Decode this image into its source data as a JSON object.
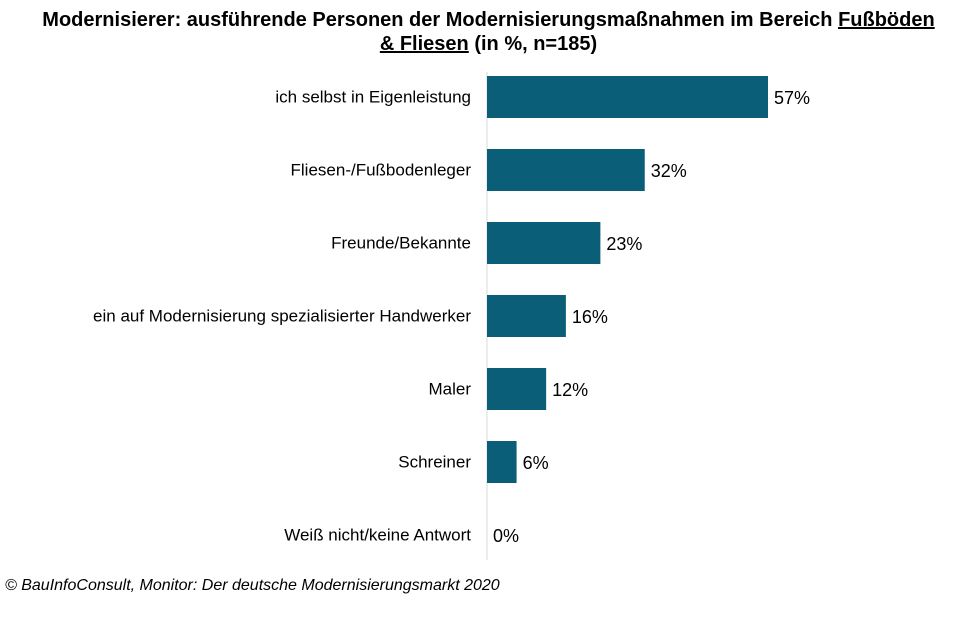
{
  "title": {
    "part1": "Modernisierer: ausführende Personen der Modernisierungsmaßnahmen im Bereich ",
    "underlined1": "Fußböden",
    "underlined2": "& Fliesen",
    "part2": " (in %, n=185)"
  },
  "chart_data": {
    "type": "bar",
    "orientation": "horizontal",
    "categories": [
      "ich selbst in Eigenleistung",
      "Fliesen-/Fußbodenleger",
      "Freunde/Bekannte",
      "ein auf Modernisierung spezialisierter Handwerker",
      "Maler",
      "Schreiner",
      "Weiß nicht/keine Antwort"
    ],
    "values": [
      57,
      32,
      23,
      16,
      12,
      6,
      0
    ],
    "value_labels": [
      "57%",
      "32%",
      "23%",
      "16%",
      "12%",
      "6%",
      "0%"
    ],
    "unit": "%",
    "xlim": [
      0,
      100
    ],
    "grid": false,
    "color": "#0b5e78"
  },
  "source": "© BauInfoConsult, Monitor: Der deutsche Modernisierungsmarkt 2020"
}
